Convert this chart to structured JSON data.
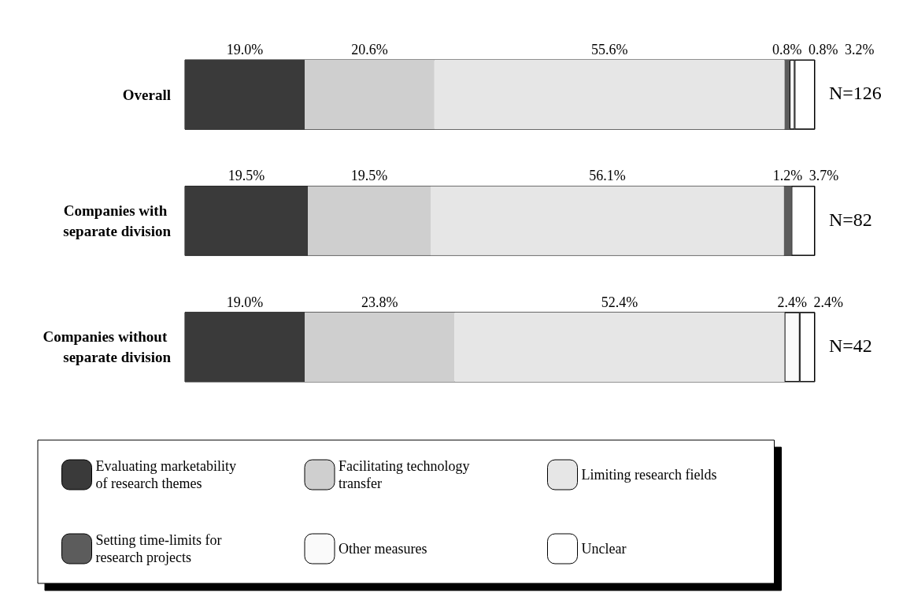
{
  "chart_data": {
    "type": "bar",
    "orientation": "horizontal",
    "stacked": true,
    "legend": "bottom",
    "categories": [
      "Overall",
      "Companies with separate division",
      "Companies without separate division"
    ],
    "series": [
      {
        "name": "Evaluating marketability of research themes",
        "color": "#3a3a3a",
        "values": [
          19.0,
          19.5,
          19.0
        ],
        "value_labels": [
          "19.0%",
          "19.5%",
          "19.0%"
        ]
      },
      {
        "name": "Facilitating technology transfer",
        "color": "#cfcfcf",
        "values": [
          20.6,
          19.5,
          23.8
        ],
        "value_labels": [
          "20.6%",
          "19.5%",
          "23.8%"
        ]
      },
      {
        "name": "Limiting research fields",
        "color": "#e6e6e6",
        "values": [
          55.6,
          56.1,
          52.4
        ],
        "value_labels": [
          "55.6%",
          "56.1%",
          "52.4%"
        ]
      },
      {
        "name": "Setting time-limits for research projects",
        "color": "#5c5c5c",
        "values": [
          0.8,
          1.2,
          null
        ],
        "value_labels": [
          "0.8%",
          "1.2%",
          null
        ]
      },
      {
        "name": "Other measures",
        "color": "#fafafa",
        "values": [
          0.8,
          null,
          2.4
        ],
        "value_labels": [
          "0.8%",
          null,
          "2.4%"
        ]
      },
      {
        "name": "Unclear",
        "color": "#ffffff",
        "values": [
          3.2,
          3.7,
          2.4
        ],
        "value_labels": [
          "3.2%",
          "3.7%",
          "2.4%"
        ]
      }
    ],
    "annotations": [
      "N=126",
      "N=82",
      "N=42"
    ]
  }
}
